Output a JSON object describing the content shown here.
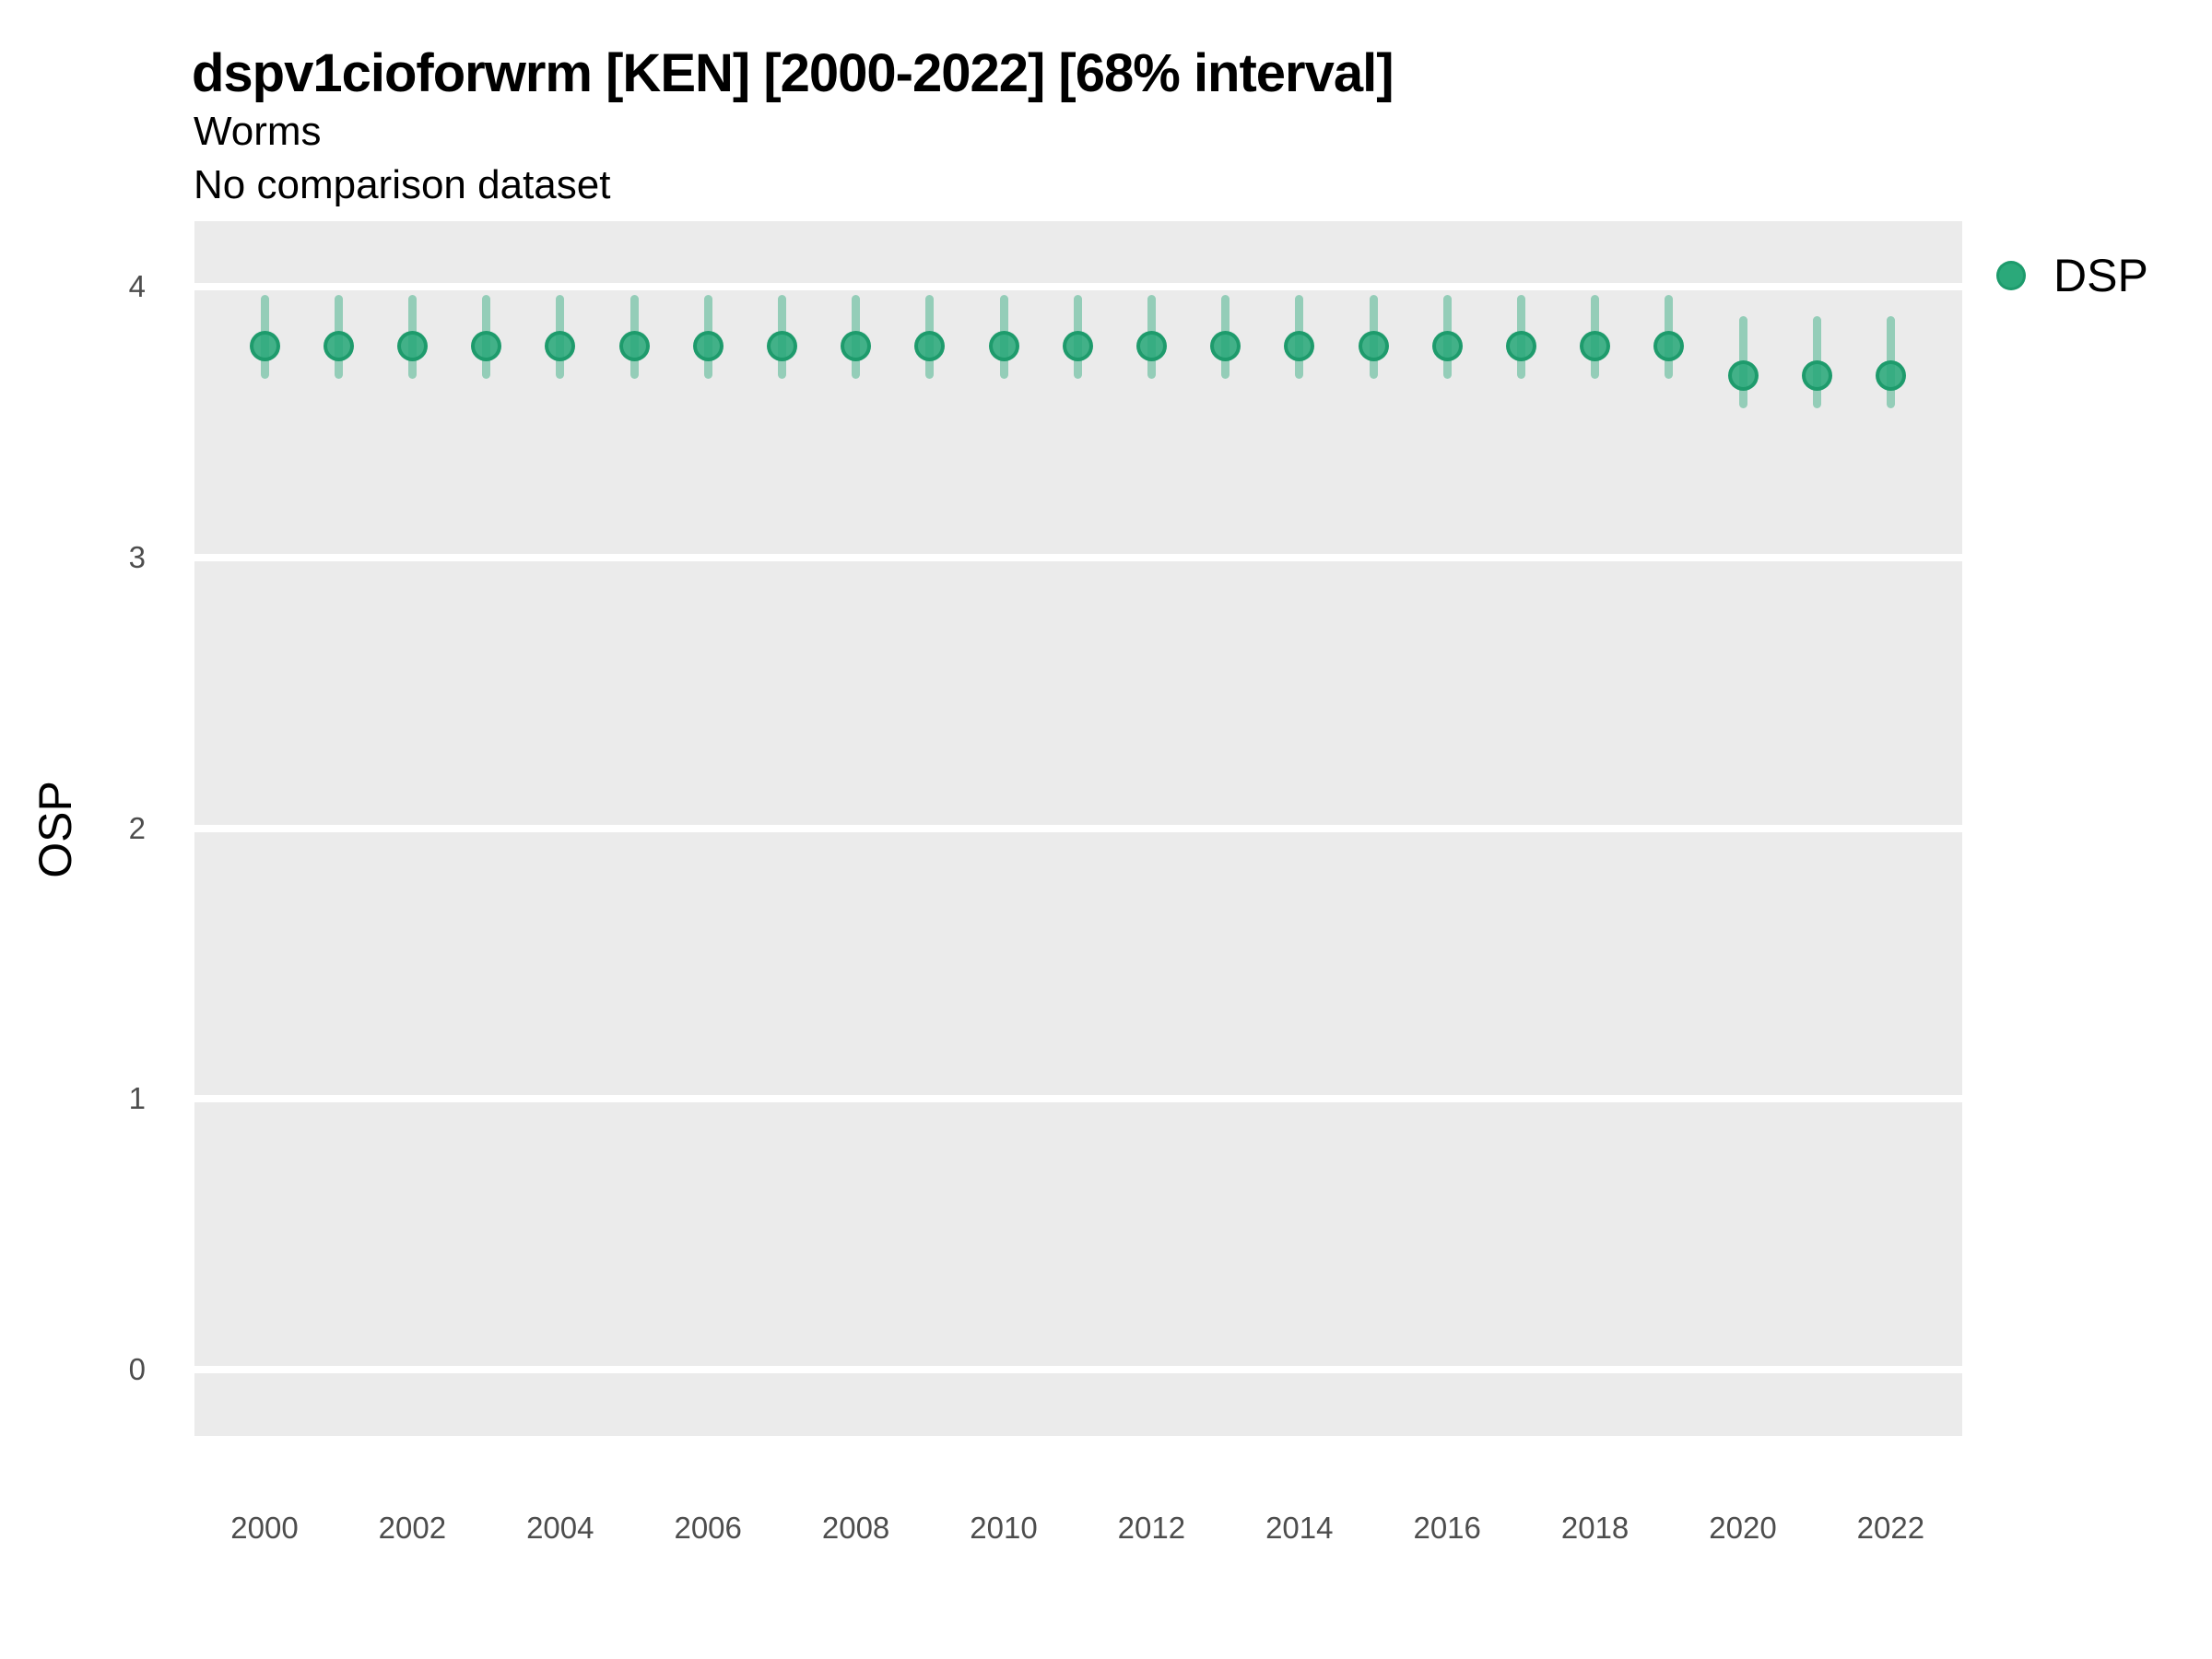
{
  "header": {
    "title": "dspv1cioforwrm [KEN] [2000-2022] [68% interval]",
    "subtitle": "Worms",
    "comparison_note": "No comparison dataset"
  },
  "legend": {
    "items": [
      {
        "label": "DSP",
        "color": "#2BA97A"
      }
    ]
  },
  "colors": {
    "point_fill": "#2AA87A",
    "point_ring": "#1C9A6C",
    "interval_bar": "#94CDB5",
    "panel_background": "#EBEBEB",
    "gridline": "#FFFFFF",
    "tick_text": "#4D4D4D"
  },
  "chart_data": {
    "type": "scatter",
    "title": "dspv1cioforwrm [KEN] [2000-2022] [68% interval]",
    "subtitle": "Worms",
    "note": "No comparison dataset",
    "xlabel": "",
    "ylabel": "OSP",
    "interval": "68%",
    "grid": "horizontal-major-only",
    "legend_position": "right",
    "ylim": [
      -0.25,
      4.25
    ],
    "y_gridlines": [
      0,
      1,
      2,
      3,
      4
    ],
    "x_tick_years": [
      2000,
      2002,
      2004,
      2006,
      2008,
      2010,
      2012,
      2014,
      2016,
      2018,
      2020,
      2022
    ],
    "x": [
      2000,
      2001,
      2002,
      2003,
      2004,
      2005,
      2006,
      2007,
      2008,
      2009,
      2010,
      2011,
      2012,
      2013,
      2014,
      2015,
      2016,
      2017,
      2018,
      2019,
      2020,
      2021,
      2022
    ],
    "series": [
      {
        "name": "DSP",
        "color": "#2BA97A",
        "mean": [
          3.78,
          3.78,
          3.78,
          3.78,
          3.78,
          3.78,
          3.78,
          3.78,
          3.78,
          3.78,
          3.78,
          3.78,
          3.78,
          3.78,
          3.78,
          3.78,
          3.78,
          3.78,
          3.78,
          3.78,
          3.67,
          3.67,
          3.67
        ],
        "lower": [
          3.66,
          3.66,
          3.66,
          3.66,
          3.66,
          3.66,
          3.66,
          3.66,
          3.66,
          3.66,
          3.66,
          3.66,
          3.66,
          3.66,
          3.66,
          3.66,
          3.66,
          3.66,
          3.66,
          3.66,
          3.55,
          3.55,
          3.55
        ],
        "upper": [
          3.97,
          3.97,
          3.97,
          3.97,
          3.97,
          3.97,
          3.97,
          3.97,
          3.97,
          3.97,
          3.97,
          3.97,
          3.97,
          3.97,
          3.97,
          3.97,
          3.97,
          3.97,
          3.97,
          3.97,
          3.89,
          3.89,
          3.89
        ]
      }
    ]
  }
}
